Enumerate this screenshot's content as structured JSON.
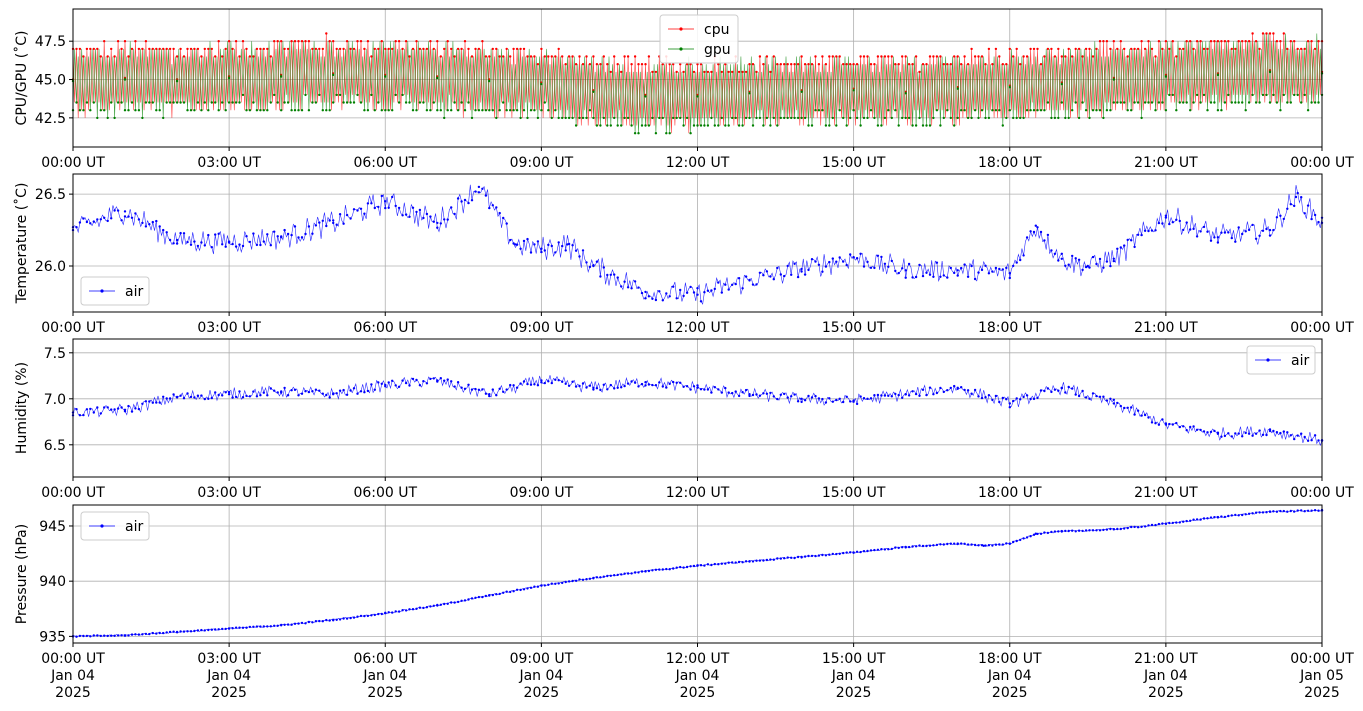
{
  "chart_data": [
    {
      "type": "line",
      "ylabel": "CPU/GPU (˚C)",
      "xlabel": "",
      "yticks": [
        42.5,
        45.0,
        47.5
      ],
      "ylim": [
        40.6,
        49.6
      ],
      "xticks": [
        "00:00 UT",
        "03:00 UT",
        "06:00 UT",
        "09:00 UT",
        "12:00 UT",
        "15:00 UT",
        "18:00 UT",
        "21:00 UT",
        "00:00 UT"
      ],
      "xlim_hours": [
        0,
        24
      ],
      "grid": true,
      "legend_position": "top-center",
      "series": [
        {
          "name": "cpu",
          "color": "#ff0000",
          "x_hours": [
            0,
            1,
            2,
            3,
            4,
            5,
            6,
            7,
            8,
            9,
            10,
            11,
            12,
            13,
            14,
            15,
            16,
            17,
            18,
            19,
            20,
            21,
            22,
            23,
            24
          ],
          "values": [
            45.0,
            45.1,
            45.0,
            45.2,
            45.3,
            45.4,
            45.3,
            45.2,
            45.0,
            44.8,
            44.3,
            44.0,
            44.0,
            44.2,
            44.3,
            44.4,
            44.2,
            44.5,
            44.6,
            44.8,
            45.1,
            45.3,
            45.4,
            45.6,
            45.5
          ]
        },
        {
          "name": "gpu",
          "color": "#008000",
          "x_hours": [
            0,
            1,
            2,
            3,
            4,
            5,
            6,
            7,
            8,
            9,
            10,
            11,
            12,
            13,
            14,
            15,
            16,
            17,
            18,
            19,
            20,
            21,
            22,
            23,
            24
          ],
          "values": [
            44.9,
            45.0,
            44.9,
            45.1,
            45.2,
            45.3,
            45.2,
            45.1,
            44.9,
            44.7,
            44.2,
            43.9,
            43.9,
            44.1,
            44.2,
            44.3,
            44.1,
            44.4,
            44.5,
            44.7,
            45.0,
            45.2,
            45.3,
            45.5,
            45.4
          ]
        }
      ]
    },
    {
      "type": "line",
      "ylabel": "Temperature (˚C)",
      "xlabel": "",
      "yticks": [
        26.0,
        26.5
      ],
      "ylim": [
        25.68,
        26.64
      ],
      "xticks": [
        "00:00 UT",
        "03:00 UT",
        "06:00 UT",
        "09:00 UT",
        "12:00 UT",
        "15:00 UT",
        "18:00 UT",
        "21:00 UT",
        "00:00 UT"
      ],
      "xlim_hours": [
        0,
        24
      ],
      "grid": true,
      "legend_position": "lower-left",
      "series": [
        {
          "name": "air",
          "color": "#0000ff",
          "x_hours": [
            0,
            1,
            2,
            3,
            4,
            5,
            6,
            7,
            7.8,
            8.5,
            9,
            9.5,
            10,
            11,
            12,
            13,
            14,
            15,
            16,
            17,
            18,
            18.5,
            19,
            19.5,
            20,
            21,
            22,
            23,
            23.5,
            24
          ],
          "values": [
            26.25,
            26.38,
            26.18,
            26.17,
            26.2,
            26.3,
            26.45,
            26.3,
            26.55,
            26.15,
            26.12,
            26.15,
            26.0,
            25.82,
            25.8,
            25.9,
            25.98,
            26.06,
            25.97,
            25.97,
            25.95,
            26.28,
            26.05,
            26.0,
            26.05,
            26.35,
            26.2,
            26.25,
            26.48,
            26.3
          ]
        }
      ]
    },
    {
      "type": "line",
      "ylabel": "Humidity (%)",
      "xlabel": "",
      "yticks": [
        6.5,
        7.0,
        7.5
      ],
      "ylim": [
        6.15,
        7.65
      ],
      "xticks": [
        "00:00 UT",
        "03:00 UT",
        "06:00 UT",
        "09:00 UT",
        "12:00 UT",
        "15:00 UT",
        "18:00 UT",
        "21:00 UT",
        "00:00 UT"
      ],
      "xlim_hours": [
        0,
        24
      ],
      "grid": true,
      "legend_position": "top-right",
      "series": [
        {
          "name": "air",
          "color": "#0000ff",
          "x_hours": [
            0,
            1,
            2,
            3,
            4,
            5,
            6,
            7,
            8,
            9,
            10,
            11,
            12,
            13,
            14,
            15,
            16,
            17,
            18,
            19,
            20,
            21,
            22,
            23,
            24
          ],
          "values": [
            6.85,
            6.88,
            7.02,
            7.05,
            7.08,
            7.05,
            7.15,
            7.2,
            7.05,
            7.2,
            7.12,
            7.18,
            7.12,
            7.05,
            7.0,
            6.98,
            7.05,
            7.12,
            6.95,
            7.12,
            6.95,
            6.72,
            6.62,
            6.65,
            6.55
          ]
        }
      ]
    },
    {
      "type": "line",
      "ylabel": "Pressure (hPa)",
      "xlabel": "",
      "yticks": [
        935,
        940,
        945
      ],
      "ylim": [
        934.4,
        946.9
      ],
      "xticks": [
        "00:00 UT\nJan 04\n2025",
        "03:00 UT\nJan 04\n2025",
        "06:00 UT\nJan 04\n2025",
        "09:00 UT\nJan 04\n2025",
        "12:00 UT\nJan 04\n2025",
        "15:00 UT\nJan 04\n2025",
        "18:00 UT\nJan 04\n2025",
        "21:00 UT\nJan 04\n2025",
        "00:00 UT\nJan 05\n2025"
      ],
      "xlim_hours": [
        0,
        24
      ],
      "grid": true,
      "legend_position": "top-left",
      "series": [
        {
          "name": "air",
          "color": "#0000ff",
          "x_hours": [
            0,
            1,
            2,
            3,
            4,
            5,
            6,
            7,
            8,
            9,
            10,
            11,
            12,
            13,
            14,
            15,
            16,
            17,
            17.5,
            18,
            18.5,
            19,
            20,
            21,
            22,
            23,
            24
          ],
          "values": [
            935.0,
            935.1,
            935.4,
            935.7,
            936.0,
            936.5,
            937.1,
            937.8,
            938.7,
            939.6,
            940.3,
            940.9,
            941.4,
            941.8,
            942.2,
            942.6,
            943.1,
            943.4,
            943.2,
            943.4,
            944.3,
            944.5,
            944.7,
            945.2,
            945.8,
            946.3,
            946.4
          ]
        }
      ]
    }
  ]
}
